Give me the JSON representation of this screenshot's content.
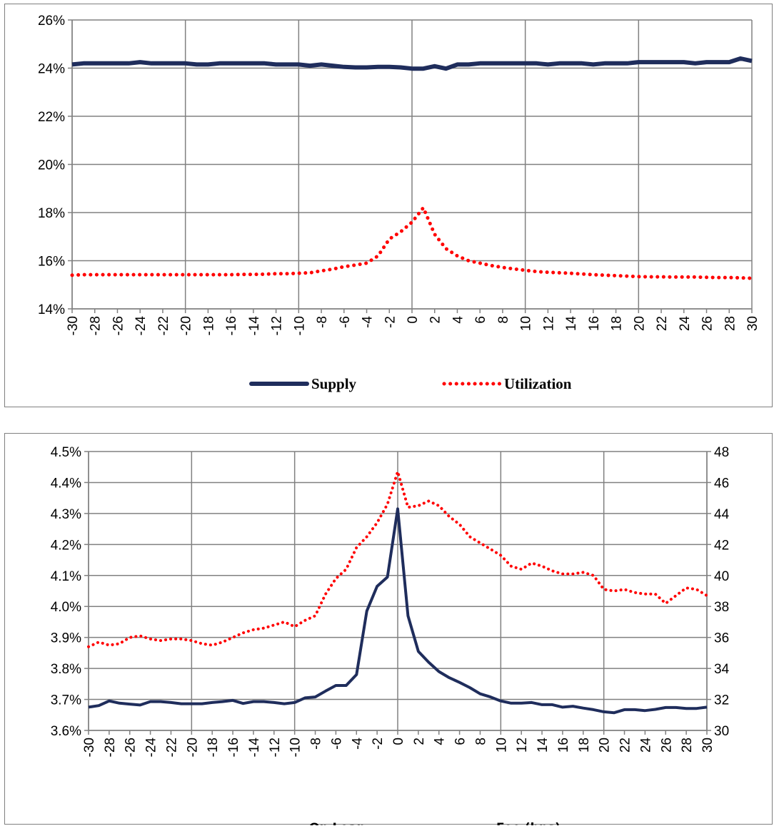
{
  "colors": {
    "navy": "#1f2d5c",
    "red": "#ff0000",
    "grid": "#808080"
  },
  "chart_data": [
    {
      "type": "line",
      "x": [
        -30,
        -29,
        -28,
        -27,
        -26,
        -25,
        -24,
        -23,
        -22,
        -21,
        -20,
        -19,
        -18,
        -17,
        -16,
        -15,
        -14,
        -13,
        -12,
        -11,
        -10,
        -9,
        -8,
        -7,
        -6,
        -5,
        -4,
        -3,
        -2,
        -1,
        0,
        1,
        2,
        3,
        4,
        5,
        6,
        7,
        8,
        9,
        10,
        11,
        12,
        13,
        14,
        15,
        16,
        17,
        18,
        19,
        20,
        21,
        22,
        23,
        24,
        25,
        26,
        27,
        28,
        29,
        30
      ],
      "x_ticks": [
        "-30",
        "-28",
        "-26",
        "-24",
        "-22",
        "-20",
        "-18",
        "-16",
        "-14",
        "-12",
        "-10",
        "-8",
        "-6",
        "-4",
        "-2",
        "0",
        "2",
        "4",
        "6",
        "8",
        "10",
        "12",
        "14",
        "16",
        "18",
        "20",
        "22",
        "24",
        "26",
        "28",
        "30"
      ],
      "y_ticks": [
        "14%",
        "16%",
        "18%",
        "20%",
        "22%",
        "24%",
        "26%"
      ],
      "ylim": [
        14,
        26
      ],
      "grid": true,
      "legend_position": "bottom",
      "series": [
        {
          "name": "Supply",
          "style": "solid",
          "color": "#1f2d5c",
          "axis": "left",
          "values": [
            24.15,
            24.2,
            24.2,
            24.2,
            24.2,
            24.2,
            24.25,
            24.2,
            24.2,
            24.2,
            24.2,
            24.15,
            24.15,
            24.2,
            24.2,
            24.2,
            24.2,
            24.2,
            24.15,
            24.15,
            24.15,
            24.1,
            24.15,
            24.1,
            24.05,
            24.03,
            24.03,
            24.05,
            24.05,
            24.03,
            23.98,
            23.98,
            24.08,
            23.98,
            24.15,
            24.15,
            24.2,
            24.2,
            24.2,
            24.2,
            24.2,
            24.2,
            24.15,
            24.2,
            24.2,
            24.2,
            24.15,
            24.2,
            24.2,
            24.2,
            24.25,
            24.25,
            24.25,
            24.25,
            24.25,
            24.2,
            24.25,
            24.25,
            24.25,
            24.4,
            24.3
          ]
        },
        {
          "name": "Utilization",
          "style": "dotted",
          "color": "#ff0000",
          "axis": "left",
          "values": [
            15.4,
            15.42,
            15.42,
            15.42,
            15.42,
            15.42,
            15.42,
            15.42,
            15.42,
            15.42,
            15.42,
            15.42,
            15.42,
            15.42,
            15.42,
            15.43,
            15.43,
            15.44,
            15.46,
            15.46,
            15.48,
            15.5,
            15.58,
            15.65,
            15.75,
            15.82,
            15.9,
            16.2,
            16.9,
            17.2,
            17.6,
            18.2,
            17.1,
            16.5,
            16.2,
            16.0,
            15.9,
            15.8,
            15.72,
            15.66,
            15.6,
            15.55,
            15.52,
            15.5,
            15.48,
            15.45,
            15.42,
            15.4,
            15.38,
            15.36,
            15.34,
            15.33,
            15.33,
            15.32,
            15.32,
            15.32,
            15.31,
            15.3,
            15.3,
            15.29,
            15.27
          ]
        }
      ]
    },
    {
      "type": "line",
      "x": [
        -30,
        -29,
        -28,
        -27,
        -26,
        -25,
        -24,
        -23,
        -22,
        -21,
        -20,
        -19,
        -18,
        -17,
        -16,
        -15,
        -14,
        -13,
        -12,
        -11,
        -10,
        -9,
        -8,
        -7,
        -6,
        -5,
        -4,
        -3,
        -2,
        -1,
        0,
        1,
        2,
        3,
        4,
        5,
        6,
        7,
        8,
        9,
        10,
        11,
        12,
        13,
        14,
        15,
        16,
        17,
        18,
        19,
        20,
        21,
        22,
        23,
        24,
        25,
        26,
        27,
        28,
        29,
        30
      ],
      "x_ticks": [
        "-30",
        "-28",
        "-26",
        "-24",
        "-22",
        "-20",
        "-18",
        "-16",
        "-14",
        "-12",
        "-10",
        "-8",
        "-6",
        "-4",
        "-2",
        "0",
        "2",
        "4",
        "6",
        "8",
        "10",
        "12",
        "14",
        "16",
        "18",
        "20",
        "22",
        "24",
        "26",
        "28",
        "30"
      ],
      "y_ticks": [
        "3.6%",
        "3.7%",
        "3.8%",
        "3.9%",
        "4.0%",
        "4.1%",
        "4.2%",
        "4.3%",
        "4.4%",
        "4.5%"
      ],
      "y2_ticks": [
        "30",
        "32",
        "34",
        "36",
        "38",
        "40",
        "42",
        "44",
        "46",
        "48"
      ],
      "ylim": [
        3.6,
        4.5
      ],
      "y2lim": [
        30,
        48
      ],
      "grid": true,
      "legend_position": "bottom",
      "series": [
        {
          "name": "On Loan",
          "style": "solid",
          "color": "#1f2d5c",
          "axis": "left",
          "values": [
            3.675,
            3.68,
            3.695,
            3.688,
            3.685,
            3.682,
            3.693,
            3.693,
            3.69,
            3.686,
            3.686,
            3.686,
            3.69,
            3.693,
            3.697,
            3.687,
            3.693,
            3.693,
            3.69,
            3.686,
            3.69,
            3.705,
            3.708,
            3.727,
            3.745,
            3.745,
            3.78,
            3.985,
            4.065,
            4.095,
            4.315,
            3.97,
            3.855,
            3.82,
            3.79,
            3.77,
            3.755,
            3.738,
            3.718,
            3.708,
            3.695,
            3.688,
            3.688,
            3.69,
            3.683,
            3.683,
            3.675,
            3.678,
            3.672,
            3.667,
            3.66,
            3.657,
            3.667,
            3.667,
            3.664,
            3.668,
            3.674,
            3.674,
            3.671,
            3.671,
            3.675
          ]
        },
        {
          "name": "Fee (bps)",
          "style": "dotted",
          "color": "#ff0000",
          "axis": "right",
          "values": [
            35.4,
            35.7,
            35.5,
            35.6,
            36.0,
            36.1,
            35.9,
            35.8,
            35.9,
            35.9,
            35.8,
            35.6,
            35.5,
            35.7,
            36.0,
            36.3,
            36.5,
            36.6,
            36.8,
            37.0,
            36.7,
            37.1,
            37.4,
            38.8,
            39.8,
            40.4,
            41.8,
            42.5,
            43.4,
            44.6,
            46.7,
            44.4,
            44.5,
            44.8,
            44.5,
            43.8,
            43.3,
            42.5,
            42.1,
            41.7,
            41.3,
            40.6,
            40.4,
            40.8,
            40.6,
            40.3,
            40.1,
            40.1,
            40.2,
            40.0,
            39.1,
            39.0,
            39.1,
            38.9,
            38.8,
            38.8,
            38.2,
            38.7,
            39.2,
            39.1,
            38.7
          ]
        }
      ]
    }
  ]
}
